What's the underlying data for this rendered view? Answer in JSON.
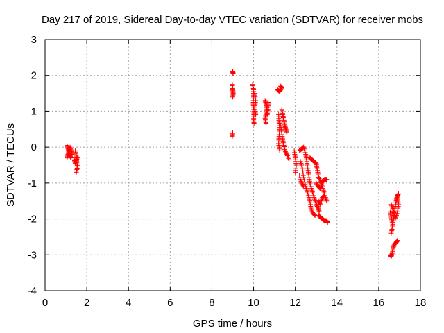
{
  "chart_data": {
    "type": "scatter",
    "title": "Day 217 of 2019, Sidereal Day-to-day VTEC variation (SDTVAR) for receiver mobs",
    "xlabel": "GPS time / hours",
    "ylabel": "SDTVAR / TECUs",
    "xlim": [
      0,
      18
    ],
    "ylim": [
      -4,
      3
    ],
    "xticks": [
      0,
      2,
      4,
      6,
      8,
      10,
      12,
      14,
      16,
      18
    ],
    "yticks": [
      -4,
      -3,
      -2,
      -1,
      0,
      1,
      2,
      3
    ],
    "grid": true,
    "marker": "+",
    "marker_color": "#ff0000",
    "series": [
      {
        "name": "SDTVAR",
        "segments": [
          [
            [
              1.05,
              0.05
            ],
            [
              1.1,
              -0.05
            ],
            [
              1.15,
              -0.15
            ],
            [
              1.2,
              -0.25
            ],
            [
              1.25,
              -0.3
            ]
          ],
          [
            [
              1.05,
              -0.3
            ],
            [
              1.1,
              -0.2
            ],
            [
              1.15,
              -0.1
            ],
            [
              1.2,
              0.0
            ],
            [
              1.25,
              -0.1
            ],
            [
              1.3,
              -0.2
            ]
          ],
          [
            [
              1.45,
              -0.1
            ],
            [
              1.5,
              -0.25
            ],
            [
              1.52,
              -0.4
            ],
            [
              1.55,
              -0.55
            ],
            [
              1.5,
              -0.7
            ]
          ],
          [
            [
              1.4,
              -0.35
            ],
            [
              1.45,
              -0.45
            ],
            [
              1.55,
              -0.3
            ]
          ],
          [
            [
              9.0,
              2.1
            ],
            [
              9.02,
              2.05
            ]
          ],
          [
            [
              8.98,
              1.75
            ],
            [
              9.0,
              1.6
            ],
            [
              9.02,
              1.5
            ],
            [
              9.0,
              1.4
            ]
          ],
          [
            [
              8.98,
              0.3
            ],
            [
              9.0,
              0.4
            ]
          ],
          [
            [
              9.95,
              1.75
            ],
            [
              10.0,
              1.6
            ],
            [
              10.0,
              1.4
            ],
            [
              9.98,
              1.2
            ],
            [
              10.02,
              1.0
            ],
            [
              10.0,
              0.8
            ],
            [
              10.02,
              0.65
            ]
          ],
          [
            [
              10.05,
              1.5
            ],
            [
              10.1,
              1.3
            ],
            [
              10.05,
              1.1
            ],
            [
              10.1,
              0.9
            ]
          ],
          [
            [
              10.55,
              1.3
            ],
            [
              10.6,
              1.2
            ],
            [
              10.65,
              1.1
            ],
            [
              10.6,
              0.95
            ],
            [
              10.55,
              0.8
            ],
            [
              10.6,
              0.65
            ]
          ],
          [
            [
              10.7,
              1.25
            ],
            [
              10.7,
              1.05
            ],
            [
              10.65,
              0.9
            ]
          ],
          [
            [
              11.15,
              1.6
            ],
            [
              11.25,
              1.55
            ],
            [
              11.35,
              1.65
            ],
            [
              11.3,
              1.7
            ]
          ],
          [
            [
              11.2,
              0.9
            ],
            [
              11.22,
              0.7
            ],
            [
              11.25,
              0.5
            ],
            [
              11.22,
              0.3
            ],
            [
              11.2,
              0.1
            ],
            [
              11.25,
              -0.1
            ]
          ],
          [
            [
              11.35,
              1.05
            ],
            [
              11.4,
              0.9
            ],
            [
              11.45,
              0.75
            ],
            [
              11.5,
              0.6
            ],
            [
              11.55,
              0.5
            ],
            [
              11.6,
              0.4
            ]
          ],
          [
            [
              11.3,
              0.6
            ],
            [
              11.35,
              0.4
            ],
            [
              11.4,
              0.2
            ],
            [
              11.45,
              0.05
            ],
            [
              11.5,
              -0.1
            ],
            [
              11.6,
              -0.2
            ],
            [
              11.7,
              -0.35
            ]
          ],
          [
            [
              11.95,
              -0.1
            ],
            [
              12.0,
              -0.3
            ],
            [
              12.05,
              -0.5
            ],
            [
              12.0,
              -0.7
            ]
          ],
          [
            [
              12.2,
              -0.1
            ],
            [
              12.3,
              -0.05
            ],
            [
              12.4,
              0.0
            ],
            [
              12.5,
              -0.2
            ],
            [
              12.55,
              -0.4
            ],
            [
              12.6,
              -0.6
            ],
            [
              12.65,
              -0.8
            ],
            [
              12.7,
              -1.0
            ],
            [
              12.8,
              -1.2
            ],
            [
              12.9,
              -1.4
            ],
            [
              13.0,
              -1.6
            ],
            [
              13.1,
              -1.7
            ],
            [
              13.15,
              -1.8
            ]
          ],
          [
            [
              12.25,
              -0.4
            ],
            [
              12.35,
              -0.6
            ],
            [
              12.4,
              -0.85
            ],
            [
              12.5,
              -1.1
            ],
            [
              12.6,
              -1.3
            ],
            [
              12.7,
              -1.5
            ],
            [
              12.75,
              -1.7
            ],
            [
              12.85,
              -1.85
            ],
            [
              12.95,
              -1.9
            ]
          ],
          [
            [
              12.2,
              -0.8
            ],
            [
              12.3,
              -1.0
            ],
            [
              12.4,
              -1.1
            ]
          ],
          [
            [
              12.7,
              -0.3
            ],
            [
              12.8,
              -0.35
            ],
            [
              12.9,
              -0.4
            ],
            [
              13.0,
              -0.45
            ],
            [
              13.05,
              -0.6
            ],
            [
              13.1,
              -0.8
            ],
            [
              13.2,
              -0.95
            ],
            [
              13.3,
              -1.1
            ],
            [
              13.4,
              -1.3
            ],
            [
              13.5,
              -1.5
            ]
          ],
          [
            [
              13.0,
              -1.0
            ],
            [
              13.1,
              -1.1
            ],
            [
              13.2,
              -1.15
            ],
            [
              13.3,
              -0.95
            ],
            [
              13.4,
              -0.9
            ],
            [
              13.5,
              -0.9
            ]
          ],
          [
            [
              13.1,
              -1.9
            ],
            [
              13.2,
              -1.95
            ],
            [
              13.3,
              -2.0
            ],
            [
              13.4,
              -2.05
            ],
            [
              13.5,
              -2.05
            ],
            [
              13.55,
              -2.1
            ]
          ],
          [
            [
              13.1,
              -1.5
            ],
            [
              13.2,
              -1.6
            ],
            [
              13.3,
              -1.4
            ],
            [
              13.4,
              -1.35
            ]
          ],
          [
            [
              16.55,
              -3.0
            ],
            [
              16.6,
              -3.05
            ],
            [
              16.65,
              -2.95
            ],
            [
              16.7,
              -2.8
            ],
            [
              16.75,
              -2.7
            ],
            [
              16.85,
              -2.65
            ],
            [
              16.9,
              -2.6
            ]
          ],
          [
            [
              16.6,
              -2.4
            ],
            [
              16.65,
              -2.25
            ],
            [
              16.7,
              -2.05
            ],
            [
              16.75,
              -1.85
            ],
            [
              16.8,
              -1.65
            ],
            [
              16.85,
              -1.45
            ],
            [
              16.9,
              -1.35
            ],
            [
              16.95,
              -1.3
            ]
          ],
          [
            [
              16.6,
              -1.6
            ],
            [
              16.7,
              -1.75
            ],
            [
              16.75,
              -1.9
            ],
            [
              16.8,
              -2.0
            ],
            [
              16.9,
              -1.8
            ],
            [
              16.95,
              -1.6
            ],
            [
              16.9,
              -1.45
            ]
          ],
          [
            [
              16.55,
              -1.8
            ],
            [
              16.6,
              -1.95
            ],
            [
              16.65,
              -2.1
            ]
          ]
        ]
      }
    ]
  }
}
